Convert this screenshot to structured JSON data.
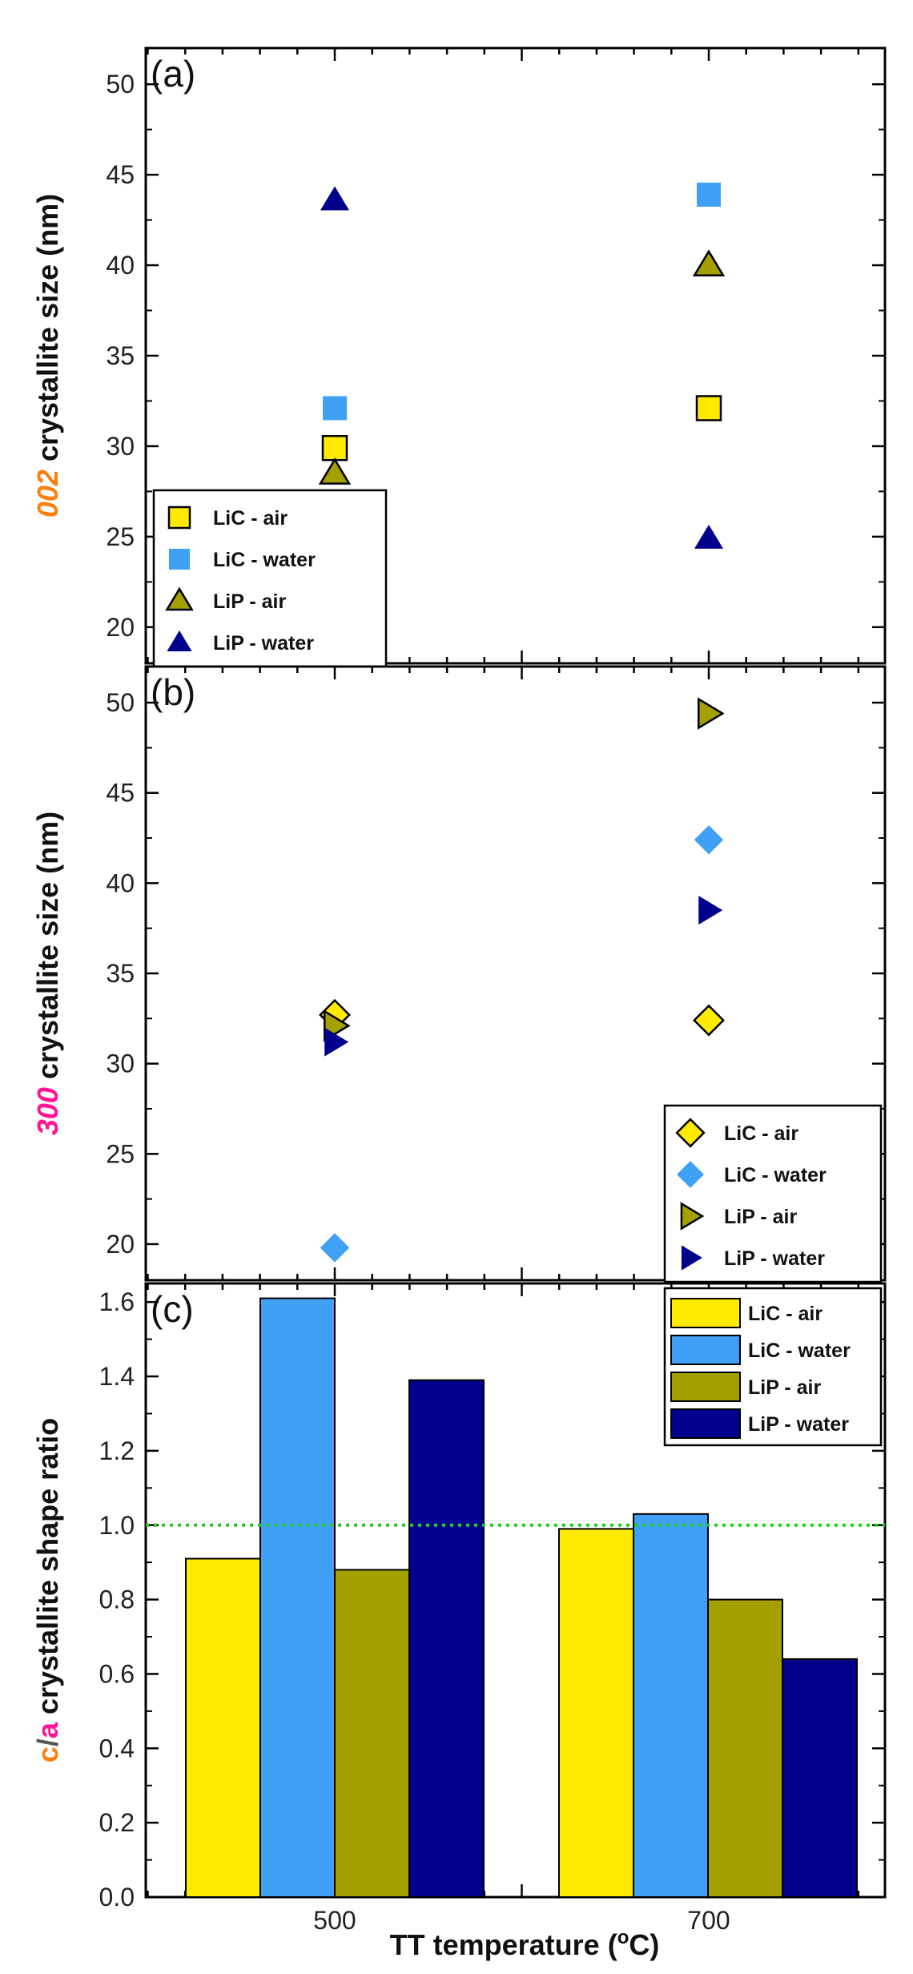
{
  "figure": {
    "xlabel": "TT temperature (",
    "xlabel_sup": "o",
    "xlabel_tail": "C)",
    "categories": [
      "500",
      "700"
    ]
  },
  "colors": {
    "LiC_air": "#FFEA00",
    "LiC_water": "#3FA0F5",
    "LiP_air": "#A3A000",
    "LiP_water": "#00008C",
    "ref_line": "#22CC22",
    "accent_002": "#FF7F0E",
    "accent_300": "#FF1493",
    "accent_c": "#FF7F0E",
    "accent_a": "#FF1493"
  },
  "chart_data": [
    {
      "id": "a",
      "type": "scatter",
      "panel_label": "(a)",
      "ylabel_prefix": "002",
      "ylabel_rest": " crystallite size (nm)",
      "ylim": [
        18,
        52
      ],
      "yticks": [
        20,
        25,
        30,
        35,
        40,
        45,
        50
      ],
      "x": [
        "500",
        "700"
      ],
      "series": [
        {
          "name": "LiC - air",
          "marker": "square",
          "values": [
            29.9,
            32.1
          ]
        },
        {
          "name": "LiC - water",
          "marker": "square",
          "values": [
            32.1,
            43.9
          ]
        },
        {
          "name": "LiP - air",
          "marker": "triangle-up",
          "values": [
            28.5,
            40.0
          ]
        },
        {
          "name": "LiP - water",
          "marker": "triangle-up",
          "values": [
            43.6,
            24.9
          ]
        }
      ],
      "legend": "bottom-left"
    },
    {
      "id": "b",
      "type": "scatter",
      "panel_label": "(b)",
      "ylabel_prefix": "300",
      "ylabel_rest": " crystallite size (nm)",
      "ylim": [
        18,
        52
      ],
      "yticks": [
        20,
        25,
        30,
        35,
        40,
        45,
        50
      ],
      "x": [
        "500",
        "700"
      ],
      "series": [
        {
          "name": "LiC - air",
          "marker": "diamond",
          "values": [
            32.7,
            32.4
          ]
        },
        {
          "name": "LiC - water",
          "marker": "diamond",
          "values": [
            19.8,
            42.4
          ]
        },
        {
          "name": "LiP - air",
          "marker": "triangle-right",
          "values": [
            32.1,
            49.4
          ]
        },
        {
          "name": "LiP - water",
          "marker": "triangle-right",
          "values": [
            31.2,
            38.5
          ]
        }
      ],
      "legend": "bottom-right"
    },
    {
      "id": "c",
      "type": "bar",
      "panel_label": "(c)",
      "ylabel_prefix1": "c",
      "ylabel_slash": "/",
      "ylabel_prefix2": "a",
      "ylabel_rest": " crystallite shape ratio",
      "ylim": [
        0.0,
        1.65
      ],
      "yticks": [
        "0.0",
        "0.2",
        "0.4",
        "0.6",
        "0.8",
        "1.0",
        "1.2",
        "1.4",
        "1.6"
      ],
      "categories": [
        "500",
        "700"
      ],
      "series": [
        {
          "name": "LiC - air",
          "values": [
            0.91,
            0.99
          ]
        },
        {
          "name": "LiC - water",
          "values": [
            1.61,
            1.03
          ]
        },
        {
          "name": "LiP - air",
          "values": [
            0.88,
            0.8
          ]
        },
        {
          "name": "LiP - water",
          "values": [
            1.39,
            0.64
          ]
        }
      ],
      "reference_line": 1.0,
      "legend": "top-right"
    }
  ]
}
